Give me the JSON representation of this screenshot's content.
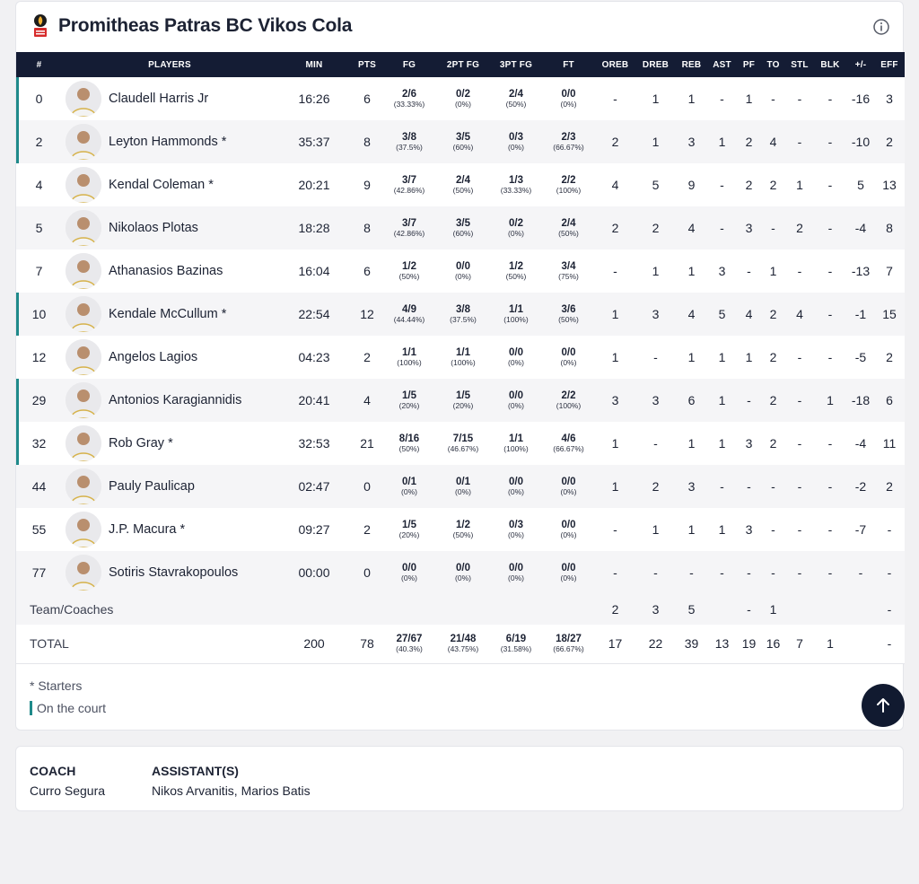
{
  "header": {
    "team_name": "Promitheas Patras BC Vikos Cola",
    "logo_icon": "team-logo-icon",
    "info_icon": "info-icon"
  },
  "table": {
    "columns": [
      "#",
      "PLAYERS",
      "MIN",
      "PTS",
      "FG",
      "2PT FG",
      "3PT FG",
      "FT",
      "OREB",
      "DREB",
      "REB",
      "AST",
      "PF",
      "TO",
      "STL",
      "BLK",
      "+/-",
      "EFF"
    ],
    "players": [
      {
        "num": "0",
        "name": "Claudell Harris Jr",
        "min": "16:26",
        "pts": "6",
        "fg": "2/6",
        "fg_pct": "(33.33%)",
        "p2": "0/2",
        "p2_pct": "(0%)",
        "p3": "2/4",
        "p3_pct": "(50%)",
        "ft": "0/0",
        "ft_pct": "(0%)",
        "oreb": "-",
        "dreb": "1",
        "reb": "1",
        "ast": "-",
        "pf": "1",
        "to": "-",
        "stl": "-",
        "blk": "-",
        "pm": "-16",
        "eff": "3",
        "on_court": true
      },
      {
        "num": "2",
        "name": "Leyton Hammonds *",
        "min": "35:37",
        "pts": "8",
        "fg": "3/8",
        "fg_pct": "(37.5%)",
        "p2": "3/5",
        "p2_pct": "(60%)",
        "p3": "0/3",
        "p3_pct": "(0%)",
        "ft": "2/3",
        "ft_pct": "(66.67%)",
        "oreb": "2",
        "dreb": "1",
        "reb": "3",
        "ast": "1",
        "pf": "2",
        "to": "4",
        "stl": "-",
        "blk": "-",
        "pm": "-10",
        "eff": "2",
        "on_court": true
      },
      {
        "num": "4",
        "name": "Kendal Coleman *",
        "min": "20:21",
        "pts": "9",
        "fg": "3/7",
        "fg_pct": "(42.86%)",
        "p2": "2/4",
        "p2_pct": "(50%)",
        "p3": "1/3",
        "p3_pct": "(33.33%)",
        "ft": "2/2",
        "ft_pct": "(100%)",
        "oreb": "4",
        "dreb": "5",
        "reb": "9",
        "ast": "-",
        "pf": "2",
        "to": "2",
        "stl": "1",
        "blk": "-",
        "pm": "5",
        "eff": "13",
        "on_court": false
      },
      {
        "num": "5",
        "name": "Nikolaos Plotas",
        "min": "18:28",
        "pts": "8",
        "fg": "3/7",
        "fg_pct": "(42.86%)",
        "p2": "3/5",
        "p2_pct": "(60%)",
        "p3": "0/2",
        "p3_pct": "(0%)",
        "ft": "2/4",
        "ft_pct": "(50%)",
        "oreb": "2",
        "dreb": "2",
        "reb": "4",
        "ast": "-",
        "pf": "3",
        "to": "-",
        "stl": "2",
        "blk": "-",
        "pm": "-4",
        "eff": "8",
        "on_court": false
      },
      {
        "num": "7",
        "name": "Athanasios Bazinas",
        "min": "16:04",
        "pts": "6",
        "fg": "1/2",
        "fg_pct": "(50%)",
        "p2": "0/0",
        "p2_pct": "(0%)",
        "p3": "1/2",
        "p3_pct": "(50%)",
        "ft": "3/4",
        "ft_pct": "(75%)",
        "oreb": "-",
        "dreb": "1",
        "reb": "1",
        "ast": "3",
        "pf": "-",
        "to": "1",
        "stl": "-",
        "blk": "-",
        "pm": "-13",
        "eff": "7",
        "on_court": false
      },
      {
        "num": "10",
        "name": "Kendale McCullum *",
        "min": "22:54",
        "pts": "12",
        "fg": "4/9",
        "fg_pct": "(44.44%)",
        "p2": "3/8",
        "p2_pct": "(37.5%)",
        "p3": "1/1",
        "p3_pct": "(100%)",
        "ft": "3/6",
        "ft_pct": "(50%)",
        "oreb": "1",
        "dreb": "3",
        "reb": "4",
        "ast": "5",
        "pf": "4",
        "to": "2",
        "stl": "4",
        "blk": "-",
        "pm": "-1",
        "eff": "15",
        "on_court": true
      },
      {
        "num": "12",
        "name": "Angelos Lagios",
        "min": "04:23",
        "pts": "2",
        "fg": "1/1",
        "fg_pct": "(100%)",
        "p2": "1/1",
        "p2_pct": "(100%)",
        "p3": "0/0",
        "p3_pct": "(0%)",
        "ft": "0/0",
        "ft_pct": "(0%)",
        "oreb": "1",
        "dreb": "-",
        "reb": "1",
        "ast": "1",
        "pf": "1",
        "to": "2",
        "stl": "-",
        "blk": "-",
        "pm": "-5",
        "eff": "2",
        "on_court": false
      },
      {
        "num": "29",
        "name": "Antonios Karagiannidis",
        "min": "20:41",
        "pts": "4",
        "fg": "1/5",
        "fg_pct": "(20%)",
        "p2": "1/5",
        "p2_pct": "(20%)",
        "p3": "0/0",
        "p3_pct": "(0%)",
        "ft": "2/2",
        "ft_pct": "(100%)",
        "oreb": "3",
        "dreb": "3",
        "reb": "6",
        "ast": "1",
        "pf": "-",
        "to": "2",
        "stl": "-",
        "blk": "1",
        "pm": "-18",
        "eff": "6",
        "on_court": true
      },
      {
        "num": "32",
        "name": "Rob Gray *",
        "min": "32:53",
        "pts": "21",
        "fg": "8/16",
        "fg_pct": "(50%)",
        "p2": "7/15",
        "p2_pct": "(46.67%)",
        "p3": "1/1",
        "p3_pct": "(100%)",
        "ft": "4/6",
        "ft_pct": "(66.67%)",
        "oreb": "1",
        "dreb": "-",
        "reb": "1",
        "ast": "1",
        "pf": "3",
        "to": "2",
        "stl": "-",
        "blk": "-",
        "pm": "-4",
        "eff": "11",
        "on_court": true
      },
      {
        "num": "44",
        "name": "Pauly Paulicap",
        "min": "02:47",
        "pts": "0",
        "fg": "0/1",
        "fg_pct": "(0%)",
        "p2": "0/1",
        "p2_pct": "(0%)",
        "p3": "0/0",
        "p3_pct": "(0%)",
        "ft": "0/0",
        "ft_pct": "(0%)",
        "oreb": "1",
        "dreb": "2",
        "reb": "3",
        "ast": "-",
        "pf": "-",
        "to": "-",
        "stl": "-",
        "blk": "-",
        "pm": "-2",
        "eff": "2",
        "on_court": false
      },
      {
        "num": "55",
        "name": "J.P. Macura *",
        "min": "09:27",
        "pts": "2",
        "fg": "1/5",
        "fg_pct": "(20%)",
        "p2": "1/2",
        "p2_pct": "(50%)",
        "p3": "0/3",
        "p3_pct": "(0%)",
        "ft": "0/0",
        "ft_pct": "(0%)",
        "oreb": "-",
        "dreb": "1",
        "reb": "1",
        "ast": "1",
        "pf": "3",
        "to": "-",
        "stl": "-",
        "blk": "-",
        "pm": "-7",
        "eff": "-",
        "on_court": false
      },
      {
        "num": "77",
        "name": "Sotiris Stavrakopoulos",
        "min": "00:00",
        "pts": "0",
        "fg": "0/0",
        "fg_pct": "(0%)",
        "p2": "0/0",
        "p2_pct": "(0%)",
        "p3": "0/0",
        "p3_pct": "(0%)",
        "ft": "0/0",
        "ft_pct": "(0%)",
        "oreb": "-",
        "dreb": "-",
        "reb": "-",
        "ast": "-",
        "pf": "-",
        "to": "-",
        "stl": "-",
        "blk": "-",
        "pm": "-",
        "eff": "-",
        "on_court": false
      }
    ],
    "team_row": {
      "label": "Team/Coaches",
      "oreb": "2",
      "dreb": "3",
      "reb": "5",
      "ast": "",
      "pf": "-",
      "to": "1",
      "stl": "",
      "blk": "",
      "pm": "",
      "eff": "-"
    },
    "total_row": {
      "label": "TOTAL",
      "min": "200",
      "pts": "78",
      "fg": "27/67",
      "fg_pct": "(40.3%)",
      "p2": "21/48",
      "p2_pct": "(43.75%)",
      "p3": "6/19",
      "p3_pct": "(31.58%)",
      "ft": "18/27",
      "ft_pct": "(66.67%)",
      "oreb": "17",
      "dreb": "22",
      "reb": "39",
      "ast": "13",
      "pf": "19",
      "to": "16",
      "stl": "7",
      "blk": "1",
      "pm": "",
      "eff": "-"
    }
  },
  "legend": {
    "starters": "* Starters",
    "on_court": "On the court"
  },
  "coach": {
    "coach_label": "COACH",
    "coach_name": "Curro Segura",
    "assistants_label": "ASSISTANT(S)",
    "assistants": "Nikos Arvanitis, Marios Batis"
  },
  "colors": {
    "header_bg": "#141c34",
    "on_court_accent": "#1f8a8a",
    "scroll_top_bg": "#111a30"
  },
  "scroll_top_icon": "arrow-up-icon"
}
